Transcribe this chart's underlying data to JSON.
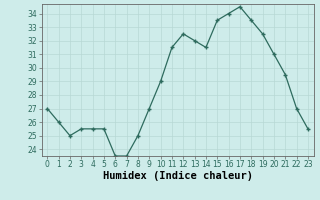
{
  "x": [
    0,
    1,
    2,
    3,
    4,
    5,
    6,
    7,
    8,
    9,
    10,
    11,
    12,
    13,
    14,
    15,
    16,
    17,
    18,
    19,
    20,
    21,
    22,
    23
  ],
  "y": [
    27,
    26,
    25,
    25.5,
    25.5,
    25.5,
    23.5,
    23.5,
    25,
    27,
    29,
    31.5,
    32.5,
    32,
    31.5,
    33.5,
    34,
    34.5,
    33.5,
    32.5,
    31,
    29.5,
    27,
    25.5
  ],
  "line_color": "#2e6b5e",
  "marker_color": "#2e6b5e",
  "bg_color": "#ceecea",
  "grid_color": "#b8d8d5",
  "grid_color_minor": "#d4e8e6",
  "xlabel": "Humidex (Indice chaleur)",
  "ylim": [
    23.5,
    34.7
  ],
  "xlim": [
    -0.5,
    23.5
  ],
  "yticks": [
    24,
    25,
    26,
    27,
    28,
    29,
    30,
    31,
    32,
    33,
    34
  ],
  "xticks": [
    0,
    1,
    2,
    3,
    4,
    5,
    6,
    7,
    8,
    9,
    10,
    11,
    12,
    13,
    14,
    15,
    16,
    17,
    18,
    19,
    20,
    21,
    22,
    23
  ],
  "xtick_labels": [
    "0",
    "1",
    "2",
    "3",
    "4",
    "5",
    "6",
    "7",
    "8",
    "9",
    "10",
    "11",
    "12",
    "13",
    "14",
    "15",
    "16",
    "17",
    "18",
    "19",
    "20",
    "21",
    "22",
    "23"
  ],
  "tick_fontsize": 5.5,
  "xlabel_fontsize": 7.5,
  "marker": "+",
  "marker_size": 3.5,
  "line_width": 0.9
}
